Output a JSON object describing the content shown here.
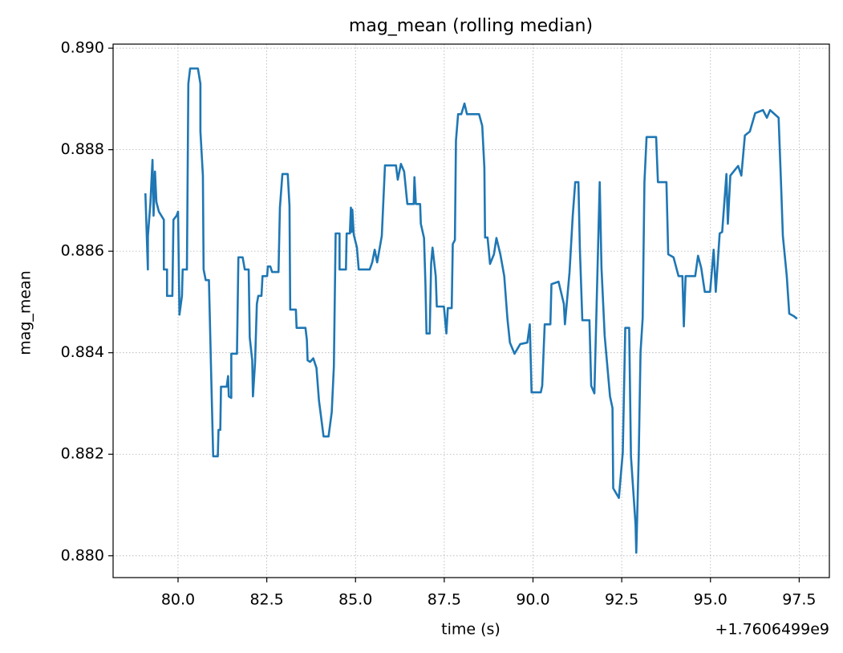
{
  "chart_data": {
    "type": "line",
    "title": "mag_mean (rolling median)",
    "x_label": "time (s)",
    "y_label": "mag_mean",
    "x_offset_label": "+1.7606499e9",
    "grid": true,
    "xlim": [
      78.17,
      98.35
    ],
    "ylim": [
      0.87957,
      0.89008
    ],
    "xticks": [
      {
        "value": 80,
        "label": "80.0"
      },
      {
        "value": 82.5,
        "label": "82.5"
      },
      {
        "value": 85,
        "label": "85.0"
      },
      {
        "value": 87.5,
        "label": "87.5"
      },
      {
        "value": 90,
        "label": "90.0"
      },
      {
        "value": 92.5,
        "label": "92.5"
      },
      {
        "value": 95,
        "label": "95.0"
      },
      {
        "value": 97.5,
        "label": "97.5"
      }
    ],
    "yticks": [
      {
        "value": 0.88,
        "label": "0.880"
      },
      {
        "value": 0.882,
        "label": "0.882"
      },
      {
        "value": 0.884,
        "label": "0.884"
      },
      {
        "value": 0.886,
        "label": "0.886"
      },
      {
        "value": 0.888,
        "label": "0.888"
      },
      {
        "value": 0.89,
        "label": "0.890"
      }
    ],
    "x": [
      79.08,
      79.15,
      79.15,
      79.22,
      79.28,
      79.31,
      79.35,
      79.39,
      79.46,
      79.6,
      79.6,
      79.69,
      79.69,
      79.84,
      79.87,
      79.96,
      80.0,
      80.04,
      80.11,
      80.13,
      80.25,
      80.29,
      80.34,
      80.56,
      80.63,
      80.63,
      80.7,
      80.72,
      80.78,
      80.87,
      80.94,
      80.99,
      81.12,
      81.14,
      81.19,
      81.21,
      81.37,
      81.41,
      81.43,
      81.5,
      81.5,
      81.66,
      81.7,
      81.82,
      81.88,
      81.99,
      82.02,
      82.09,
      82.11,
      82.17,
      82.22,
      82.26,
      82.35,
      82.38,
      82.51,
      82.53,
      82.6,
      82.65,
      82.83,
      82.87,
      82.94,
      83.09,
      83.14,
      83.16,
      83.32,
      83.34,
      83.59,
      83.63,
      83.65,
      83.72,
      83.81,
      83.9,
      83.97,
      84.1,
      84.24,
      84.33,
      84.39,
      84.44,
      84.55,
      84.55,
      84.73,
      84.75,
      84.84,
      84.87,
      84.89,
      84.91,
      84.95,
      85.04,
      85.09,
      85.4,
      85.47,
      85.54,
      85.61,
      85.74,
      85.83,
      86.14,
      86.19,
      86.28,
      86.37,
      86.46,
      86.64,
      86.66,
      86.7,
      86.82,
      86.84,
      86.93,
      86.97,
      87.0,
      87.09,
      87.13,
      87.17,
      87.26,
      87.29,
      87.49,
      87.56,
      87.6,
      87.71,
      87.74,
      87.8,
      87.83,
      87.89,
      87.98,
      88.07,
      88.14,
      88.48,
      88.57,
      88.63,
      88.65,
      88.72,
      88.79,
      88.9,
      88.97,
      89.08,
      89.19,
      89.28,
      89.35,
      89.48,
      89.64,
      89.84,
      89.91,
      89.96,
      90.22,
      90.26,
      90.33,
      90.49,
      90.52,
      90.72,
      90.87,
      90.9,
      91.03,
      91.12,
      91.19,
      91.28,
      91.32,
      91.39,
      91.59,
      91.64,
      91.73,
      91.88,
      91.93,
      92.02,
      92.17,
      92.24,
      92.26,
      92.42,
      92.53,
      92.6,
      92.71,
      92.76,
      92.89,
      92.91,
      92.98,
      93.03,
      93.09,
      93.14,
      93.2,
      93.47,
      93.52,
      93.76,
      93.81,
      93.96,
      94.1,
      94.21,
      94.25,
      94.3,
      94.57,
      94.65,
      94.74,
      94.84,
      94.99,
      95.09,
      95.15,
      95.26,
      95.33,
      95.45,
      95.49,
      95.56,
      95.78,
      95.87,
      95.97,
      96.11,
      96.26,
      96.48,
      96.59,
      96.68,
      96.92,
      96.99,
      97.04,
      97.15,
      97.22,
      97.35,
      97.44
    ],
    "series": [
      {
        "name": "mag_mean",
        "color": "#1f77b4",
        "values": [
          0.88714,
          0.88564,
          0.8863,
          0.88693,
          0.8878,
          0.8867,
          0.88757,
          0.88697,
          0.88678,
          0.88662,
          0.88564,
          0.88564,
          0.88512,
          0.88512,
          0.88662,
          0.8867,
          0.88678,
          0.88475,
          0.88512,
          0.88564,
          0.88564,
          0.8893,
          0.8896,
          0.8896,
          0.8893,
          0.88836,
          0.88749,
          0.88564,
          0.88543,
          0.88543,
          0.88338,
          0.88196,
          0.88196,
          0.88248,
          0.88248,
          0.88333,
          0.88333,
          0.88354,
          0.88314,
          0.88311,
          0.88398,
          0.88398,
          0.88588,
          0.88588,
          0.88564,
          0.88564,
          0.8843,
          0.88385,
          0.88314,
          0.88381,
          0.88496,
          0.88512,
          0.88512,
          0.88551,
          0.88551,
          0.8857,
          0.8857,
          0.88559,
          0.88559,
          0.88686,
          0.88752,
          0.88752,
          0.88689,
          0.88485,
          0.88485,
          0.88449,
          0.88449,
          0.88425,
          0.88385,
          0.88382,
          0.88389,
          0.8837,
          0.88306,
          0.88235,
          0.88235,
          0.88283,
          0.88373,
          0.88635,
          0.88635,
          0.88564,
          0.88564,
          0.88635,
          0.88635,
          0.88686,
          0.88638,
          0.88682,
          0.88633,
          0.88607,
          0.88564,
          0.88564,
          0.88578,
          0.88603,
          0.88578,
          0.8863,
          0.88769,
          0.88769,
          0.88741,
          0.88772,
          0.88757,
          0.88693,
          0.88693,
          0.88746,
          0.88693,
          0.88693,
          0.88654,
          0.88626,
          0.88535,
          0.88438,
          0.88438,
          0.88575,
          0.88607,
          0.88551,
          0.88491,
          0.88491,
          0.88438,
          0.88488,
          0.88488,
          0.88614,
          0.88622,
          0.88818,
          0.8887,
          0.8887,
          0.88891,
          0.8887,
          0.8887,
          0.88847,
          0.88765,
          0.88627,
          0.88627,
          0.88575,
          0.88594,
          0.88626,
          0.88594,
          0.88551,
          0.88467,
          0.8842,
          0.88398,
          0.88417,
          0.8842,
          0.88456,
          0.88322,
          0.88322,
          0.88335,
          0.88456,
          0.88456,
          0.88535,
          0.8854,
          0.88496,
          0.88456,
          0.88559,
          0.8867,
          0.88736,
          0.88736,
          0.88607,
          0.88464,
          0.88464,
          0.88335,
          0.8832,
          0.88736,
          0.88567,
          0.88433,
          0.88314,
          0.88291,
          0.88133,
          0.88114,
          0.88204,
          0.88449,
          0.88449,
          0.88196,
          0.88061,
          0.88006,
          0.88199,
          0.88401,
          0.88468,
          0.88736,
          0.88825,
          0.88825,
          0.88736,
          0.88736,
          0.88594,
          0.88588,
          0.88551,
          0.88551,
          0.88452,
          0.88551,
          0.88551,
          0.88591,
          0.88567,
          0.8852,
          0.8852,
          0.88603,
          0.8852,
          0.88635,
          0.88638,
          0.88752,
          0.88654,
          0.88749,
          0.88768,
          0.88749,
          0.88828,
          0.88836,
          0.88872,
          0.88878,
          0.88863,
          0.88878,
          0.88863,
          0.8873,
          0.8863,
          0.88551,
          0.88477,
          0.88472,
          0.88467
        ]
      }
    ]
  }
}
